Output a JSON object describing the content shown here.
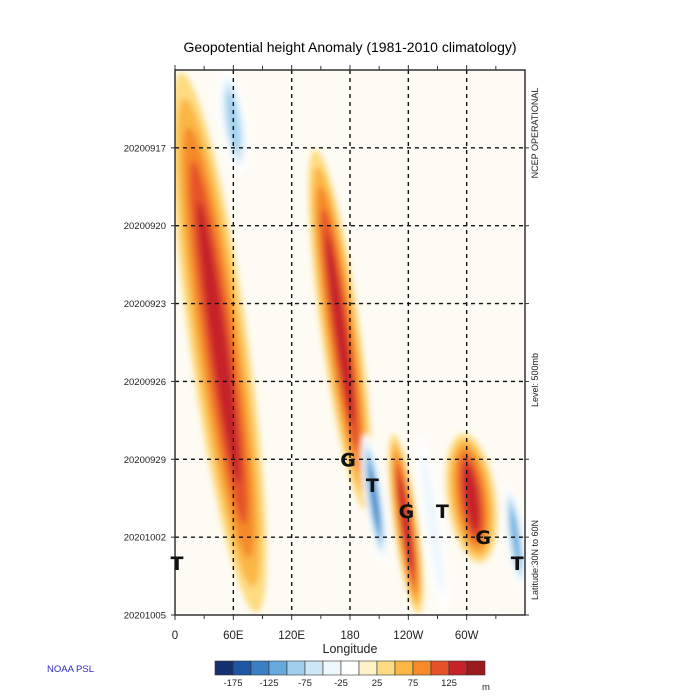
{
  "credit": "NOAA PSL",
  "chart_data": {
    "type": "heatmap",
    "title": "Geopotential height Anomaly  (1981-2010 climatology)",
    "xlabel": "Longitude",
    "ylabel": "",
    "x_ticks": [
      {
        "value": 0,
        "label": "0"
      },
      {
        "value": 60,
        "label": "60E"
      },
      {
        "value": 120,
        "label": "120E"
      },
      {
        "value": 180,
        "label": "180"
      },
      {
        "value": 240,
        "label": "120W"
      },
      {
        "value": 300,
        "label": "60W"
      }
    ],
    "x_minor_ticks": [
      30,
      90,
      150,
      210,
      270,
      330
    ],
    "xlim": [
      0,
      360
    ],
    "y_ticks": [
      "20200917",
      "20200920",
      "20200923",
      "20200926",
      "20200929",
      "20201002",
      "20201005"
    ],
    "y_range": [
      "20200914",
      "20201005"
    ],
    "y_direction": "time increases downward",
    "right_labels": {
      "source": "NCEP OPERATIONAL",
      "level": "Level:  500mb",
      "latitude": "Latitude:30N to 60N"
    },
    "grid": true,
    "grid_style": "dashed",
    "colorbar": {
      "orientation": "horizontal",
      "position": "bottom",
      "units": "m",
      "levels": [
        -175,
        -150,
        -125,
        -100,
        -75,
        -50,
        -25,
        0,
        25,
        50,
        75,
        100,
        125,
        150
      ],
      "tick_labels": [
        "-175",
        "-125",
        "-75",
        "-25",
        "25",
        "75",
        "125"
      ],
      "colors": [
        "#15306e",
        "#1f55a5",
        "#3a7ec4",
        "#66a9db",
        "#a0cfee",
        "#cde6f5",
        "#eef7fc",
        "#ffffff",
        "#fff2c7",
        "#fedb80",
        "#fbb645",
        "#f58a2b",
        "#e55229",
        "#c6222a",
        "#9a1a22"
      ]
    },
    "features": [
      {
        "type": "positive",
        "lon_start": 15,
        "lon_end": 75,
        "day_start": 0,
        "day_end": 21,
        "peak": 140,
        "note": "band near 30E-60E, max near 40E on 0927-0928"
      },
      {
        "type": "negative",
        "lon_start": 45,
        "lon_end": 75,
        "day_start": 0,
        "day_end": 4,
        "peak": -100
      },
      {
        "type": "positive",
        "lon_start": 150,
        "lon_end": 190,
        "day_start": 3,
        "day_end": 17,
        "peak": 130
      },
      {
        "type": "negative",
        "lon_start": 195,
        "lon_end": 215,
        "day_start": 14,
        "day_end": 19,
        "peak": -160
      },
      {
        "type": "positive",
        "lon_start": 225,
        "lon_end": 250,
        "day_start": 14,
        "day_end": 21,
        "peak": 140
      },
      {
        "type": "negative",
        "lon_start": 255,
        "lon_end": 275,
        "day_start": 14,
        "day_end": 21,
        "peak": -60
      },
      {
        "type": "positive",
        "lon_start": 280,
        "lon_end": 330,
        "day_start": 14,
        "day_end": 19,
        "peak": 145
      },
      {
        "type": "negative",
        "lon_start": 340,
        "lon_end": 360,
        "day_start": 16,
        "day_end": 20,
        "peak": -130
      }
    ],
    "annotations": [
      {
        "text": "G",
        "lon": 178,
        "date": "20200929"
      },
      {
        "text": "T",
        "lon": 203,
        "date": "20200930"
      },
      {
        "text": "G",
        "lon": 238,
        "date": "20201001"
      },
      {
        "text": "T",
        "lon": 275,
        "date": "20201001"
      },
      {
        "text": "G",
        "lon": 317,
        "date": "20201002"
      },
      {
        "text": "T",
        "lon": 352,
        "date": "20201003"
      },
      {
        "text": "T",
        "lon": 2,
        "date": "20201003"
      }
    ]
  }
}
